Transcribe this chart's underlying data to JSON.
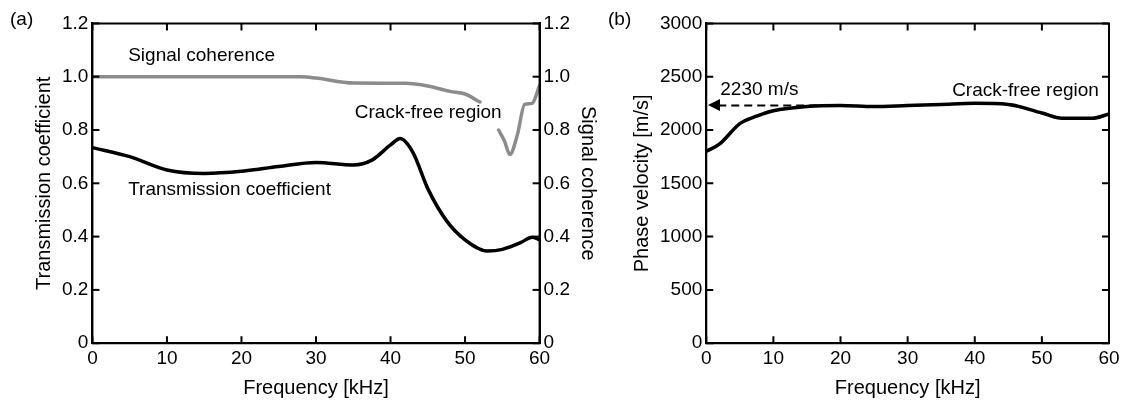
{
  "chart_data": [
    {
      "type": "line",
      "title": "(a)",
      "xlabel": "Frequency [kHz]",
      "ylabel": "Transmission coefficient",
      "y2label": "Signal coherence",
      "xlim": [
        0,
        60
      ],
      "xticks": [
        0,
        10,
        20,
        30,
        40,
        50,
        60
      ],
      "ylim": [
        0,
        1.2
      ],
      "yticks": [
        0,
        0.2,
        0.4,
        0.6,
        0.8,
        {
          "value": 1,
          "label": "1.0"
        },
        1.2
      ],
      "y2lim": [
        0,
        1.2
      ],
      "y2ticks": [
        0,
        0.2,
        0.4,
        0.6,
        0.8,
        {
          "value": 1,
          "label": "1.0"
        },
        1.2
      ],
      "grid": false,
      "legend": false,
      "marker": "none",
      "annotations": [
        "Signal coherence",
        "Transmission coefficient",
        "Crack-free region"
      ],
      "series": [
        {
          "color": "#8c8c8c",
          "axis": "y2",
          "x": [
            0,
            5,
            10,
            15,
            20,
            25,
            28,
            30,
            35,
            42,
            45,
            48,
            50,
            52,
            53.5,
            54.5,
            55.3,
            56,
            57,
            58,
            59,
            60
          ],
          "values": [
            1.0,
            1.0,
            1.0,
            1.0,
            1.0,
            1.0,
            1.0,
            0.995,
            0.976,
            0.975,
            0.965,
            0.945,
            0.935,
            0.905,
            null,
            0.8,
            0.758,
            0.708,
            0.78,
            0.896,
            0.9,
            0.967
          ]
        },
        {
          "color": "#000000",
          "x": [
            0,
            5,
            10,
            15,
            20,
            25,
            30,
            35,
            37.5,
            40,
            41.3,
            43,
            45,
            47.5,
            50,
            53,
            55,
            57.5,
            59,
            60
          ],
          "values": [
            0.734,
            0.7,
            0.65,
            0.637,
            0.645,
            0.663,
            0.678,
            0.669,
            0.687,
            0.744,
            0.768,
            0.716,
            0.58,
            0.46,
            0.388,
            0.346,
            0.352,
            0.378,
            0.398,
            0.388
          ]
        }
      ]
    },
    {
      "type": "line",
      "title": "(b)",
      "xlabel": "Frequency [kHz]",
      "ylabel": "Phase velocity [m/s]",
      "xlim": [
        0,
        60
      ],
      "xticks": [
        0,
        10,
        20,
        30,
        40,
        50,
        60
      ],
      "ylim": [
        0,
        3000
      ],
      "yticks": [
        0,
        500,
        1000,
        1500,
        2000,
        2500,
        3000
      ],
      "grid": false,
      "legend": false,
      "marker": "none",
      "annotations": [
        "Crack-free region"
      ],
      "ref_lines": [
        {
          "axis": "y",
          "value": 2230,
          "label": "2230 m/s",
          "color": "#000000",
          "line_style": "dashed"
        }
      ],
      "series": [
        {
          "color": "#000000",
          "x": [
            0,
            2,
            5,
            7.5,
            10,
            15,
            20,
            25,
            30,
            35,
            40,
            45,
            50,
            53,
            57.5,
            60
          ],
          "values": [
            1800,
            1870,
            2060,
            2130,
            2180,
            2220,
            2230,
            2220,
            2230,
            2240,
            2250,
            2240,
            2160,
            2110,
            2110,
            2150
          ]
        }
      ]
    }
  ]
}
